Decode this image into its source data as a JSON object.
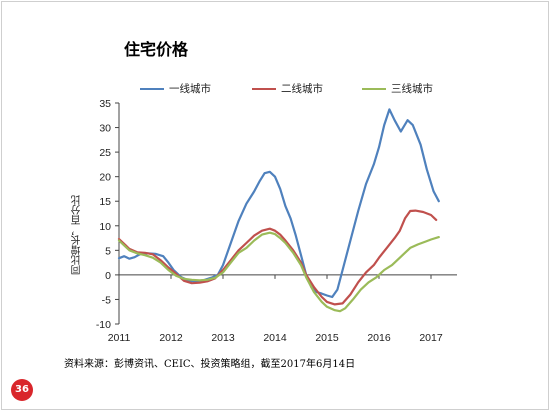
{
  "slide": {
    "title": "住宅价格",
    "source": "资料来源：彭博资讯、CEIC、投资策略组，截至2017年6月14日",
    "page_number": "36"
  },
  "chart_data": {
    "type": "line",
    "ylabel": "同比增长，百分比",
    "xlabel": "",
    "ylim": [
      -10,
      35
    ],
    "xlim": [
      2011,
      2017.5
    ],
    "yticks": [
      -10,
      -5,
      0,
      5,
      10,
      15,
      20,
      25,
      30,
      35
    ],
    "xticks": [
      2011,
      2012,
      2013,
      2014,
      2015,
      2016,
      2017
    ],
    "grid": false,
    "legend_position": "top",
    "series": [
      {
        "name": "一线城市",
        "color": "#4f81bd",
        "points": [
          [
            2011.0,
            3.4
          ],
          [
            2011.1,
            3.8
          ],
          [
            2011.2,
            3.3
          ],
          [
            2011.3,
            3.6
          ],
          [
            2011.4,
            4.2
          ],
          [
            2011.55,
            4.4
          ],
          [
            2011.7,
            4.3
          ],
          [
            2011.85,
            3.8
          ],
          [
            2011.95,
            2.5
          ],
          [
            2012.05,
            1.0
          ],
          [
            2012.2,
            -0.5
          ],
          [
            2012.35,
            -1.2
          ],
          [
            2012.5,
            -1.3
          ],
          [
            2012.65,
            -1.0
          ],
          [
            2012.8,
            -0.5
          ],
          [
            2012.9,
            0.0
          ],
          [
            2013.0,
            2.0
          ],
          [
            2013.15,
            6.5
          ],
          [
            2013.3,
            11.0
          ],
          [
            2013.45,
            14.5
          ],
          [
            2013.6,
            17.0
          ],
          [
            2013.7,
            19.0
          ],
          [
            2013.8,
            20.7
          ],
          [
            2013.9,
            21.0
          ],
          [
            2014.0,
            20.0
          ],
          [
            2014.1,
            17.5
          ],
          [
            2014.2,
            14.0
          ],
          [
            2014.3,
            11.5
          ],
          [
            2014.4,
            8.0
          ],
          [
            2014.5,
            4.0
          ],
          [
            2014.6,
            0.0
          ],
          [
            2014.7,
            -2.5
          ],
          [
            2014.8,
            -3.5
          ],
          [
            2014.9,
            -3.8
          ],
          [
            2015.0,
            -4.2
          ],
          [
            2015.1,
            -4.5
          ],
          [
            2015.2,
            -3.0
          ],
          [
            2015.3,
            1.0
          ],
          [
            2015.45,
            7.0
          ],
          [
            2015.6,
            13.0
          ],
          [
            2015.75,
            18.5
          ],
          [
            2015.9,
            22.5
          ],
          [
            2016.0,
            26.0
          ],
          [
            2016.1,
            30.5
          ],
          [
            2016.2,
            33.7
          ],
          [
            2016.3,
            31.5
          ],
          [
            2016.42,
            29.2
          ],
          [
            2016.55,
            31.5
          ],
          [
            2016.65,
            30.5
          ],
          [
            2016.8,
            26.5
          ],
          [
            2016.92,
            21.5
          ],
          [
            2017.05,
            17.0
          ],
          [
            2017.15,
            15.0
          ]
        ]
      },
      {
        "name": "二线城市",
        "color": "#c0504d",
        "points": [
          [
            2011.0,
            7.3
          ],
          [
            2011.1,
            6.3
          ],
          [
            2011.2,
            5.3
          ],
          [
            2011.35,
            4.6
          ],
          [
            2011.5,
            4.5
          ],
          [
            2011.65,
            4.2
          ],
          [
            2011.8,
            3.0
          ],
          [
            2011.95,
            1.5
          ],
          [
            2012.1,
            0.2
          ],
          [
            2012.25,
            -1.2
          ],
          [
            2012.4,
            -1.7
          ],
          [
            2012.55,
            -1.6
          ],
          [
            2012.7,
            -1.3
          ],
          [
            2012.85,
            -0.7
          ],
          [
            2013.0,
            1.0
          ],
          [
            2013.15,
            3.0
          ],
          [
            2013.3,
            5.0
          ],
          [
            2013.45,
            6.5
          ],
          [
            2013.6,
            8.0
          ],
          [
            2013.75,
            9.0
          ],
          [
            2013.9,
            9.4
          ],
          [
            2014.0,
            9.0
          ],
          [
            2014.1,
            8.2
          ],
          [
            2014.2,
            7.0
          ],
          [
            2014.35,
            5.0
          ],
          [
            2014.5,
            2.5
          ],
          [
            2014.6,
            0.0
          ],
          [
            2014.75,
            -2.5
          ],
          [
            2014.9,
            -4.5
          ],
          [
            2015.0,
            -5.5
          ],
          [
            2015.15,
            -6.0
          ],
          [
            2015.3,
            -5.8
          ],
          [
            2015.45,
            -4.0
          ],
          [
            2015.6,
            -1.5
          ],
          [
            2015.75,
            0.5
          ],
          [
            2015.9,
            2.0
          ],
          [
            2016.0,
            3.5
          ],
          [
            2016.15,
            5.5
          ],
          [
            2016.3,
            7.5
          ],
          [
            2016.4,
            9.0
          ],
          [
            2016.5,
            11.5
          ],
          [
            2016.6,
            13.0
          ],
          [
            2016.7,
            13.1
          ],
          [
            2016.85,
            12.8
          ],
          [
            2017.0,
            12.2
          ],
          [
            2017.1,
            11.2
          ]
        ]
      },
      {
        "name": "三线城市",
        "color": "#9bbb59",
        "points": [
          [
            2011.0,
            7.0
          ],
          [
            2011.1,
            6.0
          ],
          [
            2011.2,
            5.0
          ],
          [
            2011.35,
            4.4
          ],
          [
            2011.5,
            4.0
          ],
          [
            2011.65,
            3.5
          ],
          [
            2011.8,
            2.5
          ],
          [
            2011.95,
            1.0
          ],
          [
            2012.1,
            -0.2
          ],
          [
            2012.25,
            -0.8
          ],
          [
            2012.4,
            -1.0
          ],
          [
            2012.55,
            -1.1
          ],
          [
            2012.7,
            -1.0
          ],
          [
            2012.85,
            -0.6
          ],
          [
            2013.0,
            0.5
          ],
          [
            2013.15,
            2.5
          ],
          [
            2013.3,
            4.5
          ],
          [
            2013.45,
            5.5
          ],
          [
            2013.6,
            7.0
          ],
          [
            2013.75,
            8.2
          ],
          [
            2013.9,
            8.6
          ],
          [
            2014.0,
            8.3
          ],
          [
            2014.1,
            7.5
          ],
          [
            2014.2,
            6.5
          ],
          [
            2014.35,
            4.5
          ],
          [
            2014.5,
            2.0
          ],
          [
            2014.6,
            -0.5
          ],
          [
            2014.75,
            -3.5
          ],
          [
            2014.9,
            -5.5
          ],
          [
            2015.0,
            -6.5
          ],
          [
            2015.15,
            -7.2
          ],
          [
            2015.25,
            -7.4
          ],
          [
            2015.35,
            -6.8
          ],
          [
            2015.5,
            -5.0
          ],
          [
            2015.65,
            -3.0
          ],
          [
            2015.8,
            -1.5
          ],
          [
            2015.95,
            -0.5
          ],
          [
            2016.1,
            1.0
          ],
          [
            2016.25,
            2.0
          ],
          [
            2016.35,
            3.0
          ],
          [
            2016.5,
            4.5
          ],
          [
            2016.6,
            5.5
          ],
          [
            2016.75,
            6.2
          ],
          [
            2016.9,
            6.8
          ],
          [
            2017.0,
            7.2
          ],
          [
            2017.15,
            7.7
          ]
        ]
      }
    ]
  }
}
